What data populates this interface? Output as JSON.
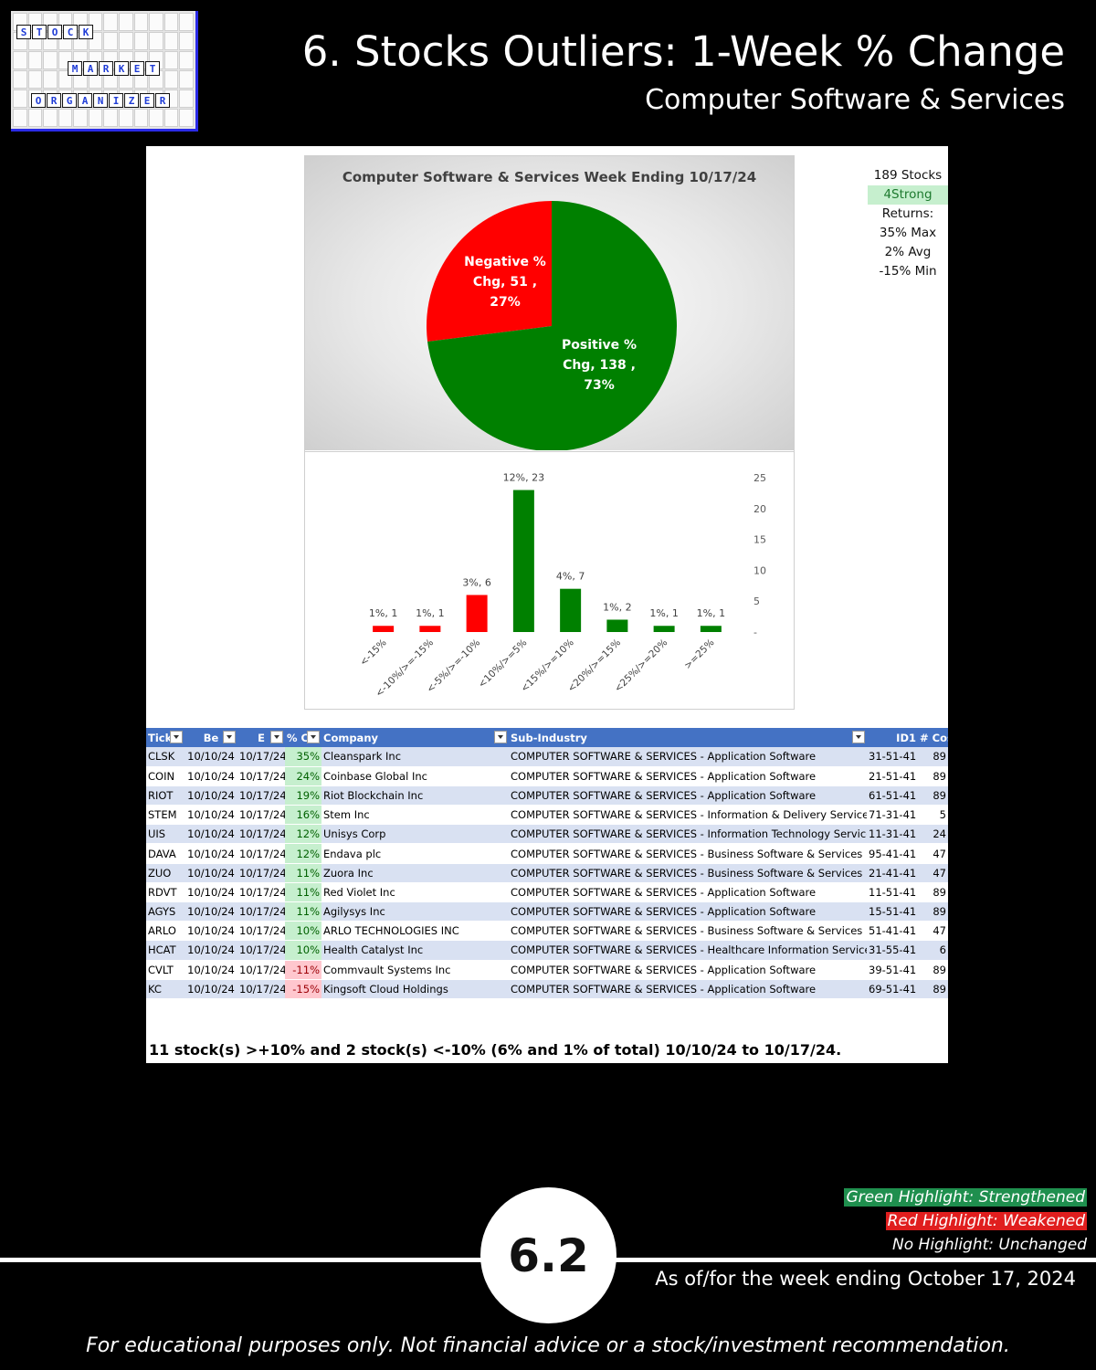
{
  "logo": {
    "words": [
      "STOCK",
      "MARKET",
      "ORGANIZER"
    ]
  },
  "header": {
    "title": "6. Stocks Outliers: 1-Week % Change",
    "subtitle": "Computer Software & Services"
  },
  "stats": {
    "stocks": "189 Stocks",
    "strength": "4Strong",
    "returns_label": "Returns:",
    "max": "35% Max",
    "avg": "2% Avg",
    "min": "-15% Min"
  },
  "chart_data": [
    {
      "type": "pie",
      "title": "Computer Software & Services Week Ending 10/17/24",
      "slices": [
        {
          "name": "Negative % Chg",
          "value": 51,
          "percent": "27%",
          "color": "#ff0000",
          "label_lines": [
            "Negative %",
            "Chg,  51 ,",
            "27%"
          ]
        },
        {
          "name": "Positive % Chg",
          "value": 138,
          "percent": "73%",
          "color": "#008000",
          "label_lines": [
            "Positive %",
            "Chg,  138 ,",
            "73%"
          ]
        }
      ]
    },
    {
      "type": "bar",
      "categories": [
        "<-15%",
        "<-10%/>=-15%",
        "<-5%/>=-10%",
        "<10%/>=5%",
        "<15%/>=10%",
        "<20%/>=15%",
        "<25%/>=20%",
        ">=25%"
      ],
      "values": [
        1,
        1,
        6,
        23,
        7,
        2,
        1,
        1
      ],
      "data_labels": [
        "1%,  1",
        "1%,  1",
        "3%,  6",
        "12%,  23",
        "4%,  7",
        "1%,  2",
        "1%,  1",
        "1%,  1"
      ],
      "colors": [
        "#ff0000",
        "#ff0000",
        "#ff0000",
        "#008000",
        "#008000",
        "#008000",
        "#008000",
        "#008000"
      ],
      "ylim": [
        0,
        25
      ],
      "yticks": [
        "-",
        "5",
        "10",
        "15",
        "20",
        "25"
      ],
      "ytick_values": [
        0,
        5,
        10,
        15,
        20,
        25
      ],
      "grid": false
    }
  ],
  "table": {
    "headers": [
      "Tick",
      "Be",
      "E",
      "% C",
      "Company",
      "Sub-Industry",
      "ID1",
      "# Cos"
    ],
    "rows": [
      [
        "CLSK",
        "10/10/24",
        "10/17/24",
        "35%",
        "Cleanspark Inc",
        "COMPUTER SOFTWARE & SERVICES - Application Software",
        "31-51-41",
        "89"
      ],
      [
        "COIN",
        "10/10/24",
        "10/17/24",
        "24%",
        "Coinbase Global Inc",
        "COMPUTER SOFTWARE & SERVICES - Application Software",
        "21-51-41",
        "89"
      ],
      [
        "RIOT",
        "10/10/24",
        "10/17/24",
        "19%",
        "Riot Blockchain Inc",
        "COMPUTER SOFTWARE & SERVICES - Application Software",
        "61-51-41",
        "89"
      ],
      [
        "STEM",
        "10/10/24",
        "10/17/24",
        "16%",
        "Stem Inc",
        "COMPUTER SOFTWARE & SERVICES - Information & Delivery Service",
        "71-31-41",
        "5"
      ],
      [
        "UIS",
        "10/10/24",
        "10/17/24",
        "12%",
        "Unisys Corp",
        "COMPUTER SOFTWARE & SERVICES - Information Technology Services",
        "11-31-41",
        "24"
      ],
      [
        "DAVA",
        "10/10/24",
        "10/17/24",
        "12%",
        "Endava plc",
        "COMPUTER SOFTWARE & SERVICES - Business Software & Services",
        "95-41-41",
        "47"
      ],
      [
        "ZUO",
        "10/10/24",
        "10/17/24",
        "11%",
        "Zuora Inc",
        "COMPUTER SOFTWARE & SERVICES - Business Software & Services",
        "21-41-41",
        "47"
      ],
      [
        "RDVT",
        "10/10/24",
        "10/17/24",
        "11%",
        "Red Violet Inc",
        "COMPUTER SOFTWARE & SERVICES - Application Software",
        "11-51-41",
        "89"
      ],
      [
        "AGYS",
        "10/10/24",
        "10/17/24",
        "11%",
        "Agilysys Inc",
        "COMPUTER SOFTWARE & SERVICES - Application Software",
        "15-51-41",
        "89"
      ],
      [
        "ARLO",
        "10/10/24",
        "10/17/24",
        "10%",
        "ARLO TECHNOLOGIES INC",
        "COMPUTER SOFTWARE & SERVICES - Business Software & Services",
        "51-41-41",
        "47"
      ],
      [
        "HCAT",
        "10/10/24",
        "10/17/24",
        "10%",
        "Health Catalyst Inc",
        "COMPUTER SOFTWARE & SERVICES - Healthcare Information Service",
        "31-55-41",
        "6"
      ],
      [
        "CVLT",
        "10/10/24",
        "10/17/24",
        "-11%",
        "Commvault Systems Inc",
        "COMPUTER SOFTWARE & SERVICES - Application Software",
        "39-51-41",
        "89"
      ],
      [
        "KC",
        "10/10/24",
        "10/17/24",
        "-15%",
        "Kingsoft Cloud Holdings",
        "COMPUTER SOFTWARE & SERVICES - Application Software",
        "69-51-41",
        "89"
      ]
    ]
  },
  "summary": "11 stock(s) >+10% and 2 stock(s) <-10% (6% and 1% of total) 10/10/24 to 10/17/24.",
  "legend": {
    "green": "Green Highlight: Strengthened",
    "red": "Red Highlight: Weakened",
    "none": "No Highlight: Unchanged",
    "green_color": "#1f8f4e",
    "red_color": "#e01e1e"
  },
  "badge": "6.2",
  "as_of": "As of/for the week ending October 17, 2024",
  "disclaimer": "For educational purposes only. Not financial advice or a stock/investment recommendation."
}
